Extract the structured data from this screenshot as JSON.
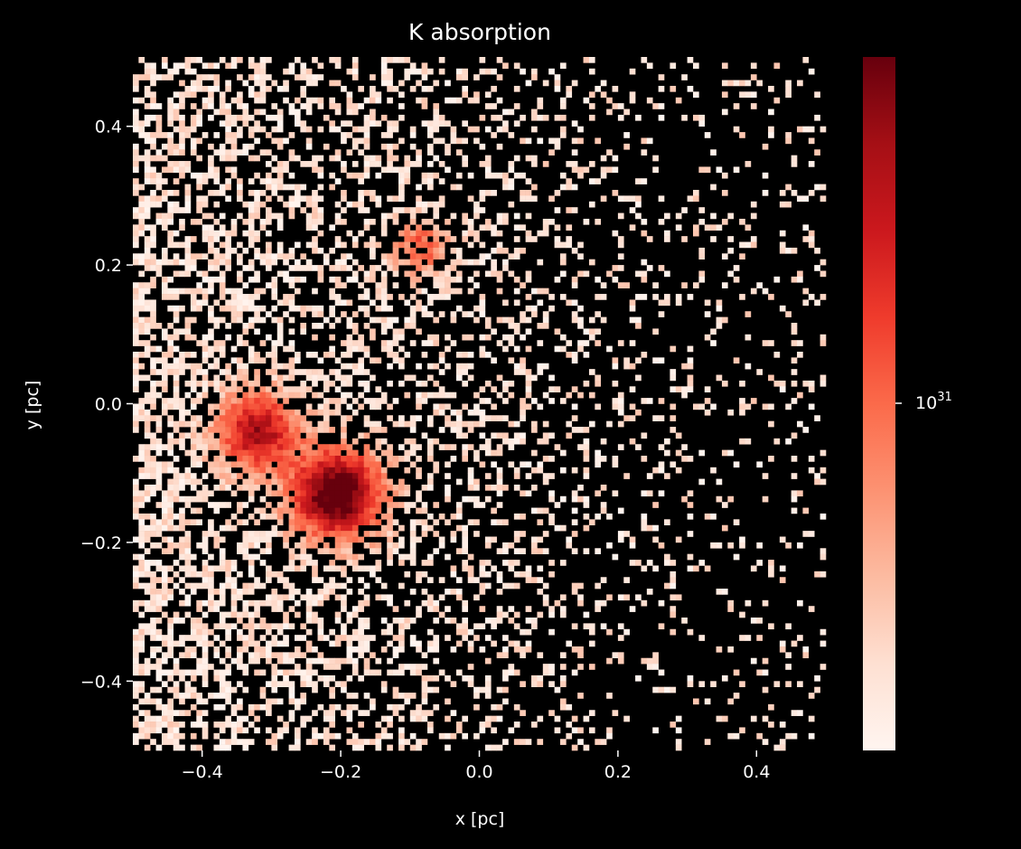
{
  "chart_data": {
    "type": "heatmap",
    "title": "K absorption",
    "xlabel": "x [pc]",
    "ylabel": "y [pc]",
    "xlim": [
      -0.5,
      0.5
    ],
    "ylim": [
      -0.5,
      0.5
    ],
    "x_ticks": [
      -0.4,
      -0.2,
      0.0,
      0.2,
      0.4
    ],
    "x_tick_labels": [
      "−0.4",
      "−0.2",
      "0.0",
      "0.2",
      "0.4"
    ],
    "y_ticks": [
      -0.4,
      -0.2,
      0.0,
      0.2,
      0.4
    ],
    "y_tick_labels": [
      "−0.4",
      "−0.2",
      "0.0",
      "0.2",
      "0.4"
    ],
    "grid": false,
    "colormap": "Reds",
    "colormap_stops": [
      "#fff5f0",
      "#fee0d2",
      "#fcbba1",
      "#fc9272",
      "#fb6a4a",
      "#ef3b2c",
      "#cb181d",
      "#a50f15",
      "#67000d"
    ],
    "background_color": "#000000",
    "colorbar": {
      "scale": "log",
      "tick_values": [
        1e+31
      ],
      "tick_label_base": "10",
      "tick_label_exponent": "31"
    },
    "bins_x": 120,
    "bins_y": 120,
    "hotspots": [
      {
        "x": -0.205,
        "y": -0.13,
        "peak": 1.0,
        "width": 0.045
      },
      {
        "x": -0.32,
        "y": -0.04,
        "peak": 0.72,
        "width": 0.04
      },
      {
        "x": -0.085,
        "y": 0.225,
        "peak": 0.45,
        "width": 0.025
      }
    ]
  }
}
